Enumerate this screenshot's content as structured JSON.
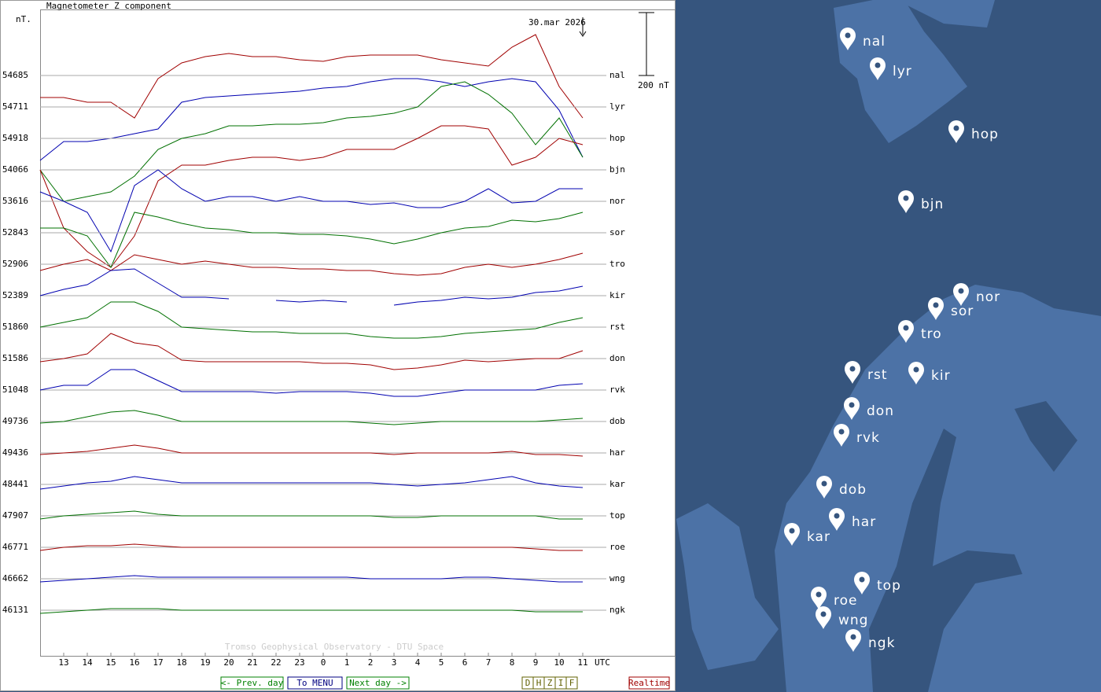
{
  "chart_data": {
    "type": "stackplot",
    "title": "Magnetometer Z component",
    "y_unit": "nT.",
    "annotation": "30.mar 2026",
    "footer": "Tromso Geophysical Observatory - DTU Space",
    "x_unit": "UTC",
    "scale_bar": {
      "value": 200,
      "label": "200 nT"
    },
    "xlim": [
      12,
      36
    ],
    "xticks": [
      13,
      14,
      15,
      16,
      17,
      18,
      19,
      20,
      21,
      22,
      23,
      {
        "value": 24,
        "label": "0"
      },
      {
        "value": 25,
        "label": "1"
      },
      {
        "value": 26,
        "label": "2"
      },
      {
        "value": 27,
        "label": "3"
      },
      {
        "value": 28,
        "label": "4"
      },
      {
        "value": 29,
        "label": "5"
      },
      {
        "value": 30,
        "label": "6"
      },
      {
        "value": 31,
        "label": "7"
      },
      {
        "value": 32,
        "label": "8"
      },
      {
        "value": 33,
        "label": "9"
      },
      {
        "value": 34,
        "label": "10"
      },
      {
        "value": 35,
        "label": "11"
      }
    ],
    "x": [
      12,
      13,
      14,
      15,
      16,
      17,
      18,
      19,
      20,
      21,
      22,
      23,
      24,
      25,
      26,
      27,
      28,
      29,
      30,
      31,
      32,
      33,
      34,
      35
    ],
    "series": [
      {
        "name": "nal",
        "baseline": 54685,
        "color": "#a00000",
        "values": [
          -70,
          -70,
          -85,
          -85,
          -135,
          -10,
          40,
          60,
          70,
          60,
          60,
          50,
          45,
          60,
          65,
          65,
          65,
          50,
          40,
          30,
          90,
          130,
          -35,
          -135
        ]
      },
      {
        "name": "lyr",
        "baseline": 54711,
        "color": "#0000b0",
        "values": [
          -170,
          -110,
          -110,
          -100,
          -85,
          -70,
          15,
          30,
          35,
          40,
          45,
          50,
          60,
          65,
          80,
          90,
          90,
          80,
          65,
          80,
          90,
          80,
          -10,
          -160
        ]
      },
      {
        "name": "hop",
        "baseline": 54918,
        "color": "#007000",
        "values": [
          -100,
          -200,
          -185,
          -170,
          -120,
          -35,
          0,
          15,
          40,
          40,
          45,
          45,
          50,
          65,
          70,
          80,
          100,
          165,
          180,
          140,
          80,
          -20,
          65,
          -60
        ]
      },
      {
        "name": "bjn",
        "baseline": 54066,
        "color": "#a00000",
        "values": [
          0,
          -185,
          -260,
          -310,
          -210,
          -35,
          15,
          15,
          30,
          40,
          40,
          30,
          40,
          65,
          65,
          65,
          100,
          140,
          140,
          130,
          15,
          40,
          100,
          80
        ]
      },
      {
        "name": "nor",
        "baseline": 53616,
        "color": "#0000b0",
        "values": [
          30,
          0,
          -35,
          -160,
          50,
          100,
          40,
          0,
          15,
          15,
          0,
          15,
          0,
          0,
          -10,
          -5,
          -20,
          -20,
          0,
          40,
          -5,
          0,
          40,
          40
        ]
      },
      {
        "name": "sor",
        "baseline": 52843,
        "color": "#007000",
        "values": [
          15,
          15,
          -10,
          -110,
          65,
          50,
          30,
          15,
          10,
          0,
          0,
          -5,
          -5,
          -10,
          -20,
          -35,
          -20,
          0,
          15,
          20,
          40,
          35,
          45,
          65
        ]
      },
      {
        "name": "tro",
        "baseline": 52906,
        "color": "#a00000",
        "values": [
          -20,
          0,
          15,
          -20,
          30,
          15,
          0,
          10,
          0,
          -10,
          -10,
          -15,
          -15,
          -20,
          -20,
          -30,
          -35,
          -30,
          -10,
          0,
          -10,
          0,
          15,
          35
        ]
      },
      {
        "name": "kir",
        "baseline": 52389,
        "color": "#0000b0",
        "values": [
          0,
          20,
          35,
          80,
          85,
          40,
          -5,
          -5,
          -10,
          null,
          -15,
          -20,
          -15,
          -20,
          null,
          -30,
          -20,
          -15,
          -5,
          -10,
          -5,
          10,
          15,
          30
        ]
      },
      {
        "name": "rst",
        "baseline": 51860,
        "color": "#007000",
        "values": [
          0,
          15,
          30,
          80,
          80,
          50,
          0,
          -5,
          -10,
          -15,
          -15,
          -20,
          -20,
          -20,
          -30,
          -35,
          -35,
          -30,
          -20,
          -15,
          -10,
          -5,
          15,
          30
        ]
      },
      {
        "name": "don",
        "baseline": 51586,
        "color": "#a00000",
        "values": [
          -10,
          0,
          15,
          80,
          50,
          40,
          -5,
          -10,
          -10,
          -10,
          -10,
          -10,
          -15,
          -15,
          -20,
          -35,
          -30,
          -20,
          -5,
          -10,
          -5,
          0,
          0,
          25
        ]
      },
      {
        "name": "rvk",
        "baseline": 51048,
        "color": "#0000b0",
        "values": [
          0,
          15,
          15,
          65,
          65,
          30,
          -5,
          -5,
          -5,
          -5,
          -10,
          -5,
          -5,
          -5,
          -10,
          -20,
          -20,
          -10,
          0,
          0,
          0,
          0,
          15,
          20
        ]
      },
      {
        "name": "dob",
        "baseline": 49736,
        "color": "#007000",
        "values": [
          -5,
          0,
          15,
          30,
          35,
          20,
          0,
          0,
          0,
          0,
          0,
          0,
          0,
          0,
          -5,
          -10,
          -5,
          0,
          0,
          0,
          0,
          0,
          5,
          10
        ]
      },
      {
        "name": "har",
        "baseline": 49436,
        "color": "#a00000",
        "values": [
          -5,
          0,
          5,
          15,
          25,
          15,
          0,
          0,
          0,
          0,
          0,
          0,
          0,
          0,
          0,
          -5,
          0,
          0,
          0,
          0,
          5,
          -5,
          -5,
          -10
        ]
      },
      {
        "name": "kar",
        "baseline": 48441,
        "color": "#0000b0",
        "values": [
          -15,
          -5,
          5,
          10,
          25,
          15,
          5,
          5,
          5,
          5,
          5,
          5,
          5,
          5,
          5,
          0,
          -5,
          0,
          5,
          15,
          25,
          5,
          -5,
          -10
        ]
      },
      {
        "name": "top",
        "baseline": 47907,
        "color": "#007000",
        "values": [
          -10,
          0,
          5,
          10,
          15,
          5,
          0,
          0,
          0,
          0,
          0,
          0,
          0,
          0,
          0,
          -5,
          -5,
          0,
          0,
          0,
          0,
          0,
          -10,
          -10
        ]
      },
      {
        "name": "roe",
        "baseline": 46771,
        "color": "#a00000",
        "values": [
          -10,
          0,
          5,
          5,
          10,
          5,
          0,
          0,
          0,
          0,
          0,
          0,
          0,
          0,
          0,
          0,
          0,
          0,
          0,
          0,
          0,
          -5,
          -10,
          -10
        ]
      },
      {
        "name": "wng",
        "baseline": 46662,
        "color": "#0000b0",
        "values": [
          -10,
          -5,
          0,
          5,
          10,
          5,
          5,
          5,
          5,
          5,
          5,
          5,
          5,
          5,
          0,
          0,
          0,
          0,
          5,
          5,
          0,
          -5,
          -10,
          -10
        ]
      },
      {
        "name": "ngk",
        "baseline": 46131,
        "color": "#007000",
        "values": [
          -10,
          -5,
          0,
          5,
          5,
          5,
          0,
          0,
          0,
          0,
          0,
          0,
          0,
          0,
          0,
          0,
          0,
          0,
          0,
          0,
          0,
          -5,
          -5,
          -5
        ]
      }
    ]
  },
  "nav": {
    "prev": "<- Prev. day",
    "menu": "To MENU",
    "next": "Next day ->",
    "components": [
      "D",
      "H",
      "Z",
      "I",
      "F"
    ],
    "realtime": "Realtime"
  },
  "map": {
    "stations": [
      "nal",
      "lyr",
      "hop",
      "bjn",
      "nor",
      "sor",
      "tro",
      "rst",
      "kir",
      "don",
      "rvk",
      "dob",
      "har",
      "kar",
      "top",
      "roe",
      "wng",
      "ngk"
    ]
  }
}
